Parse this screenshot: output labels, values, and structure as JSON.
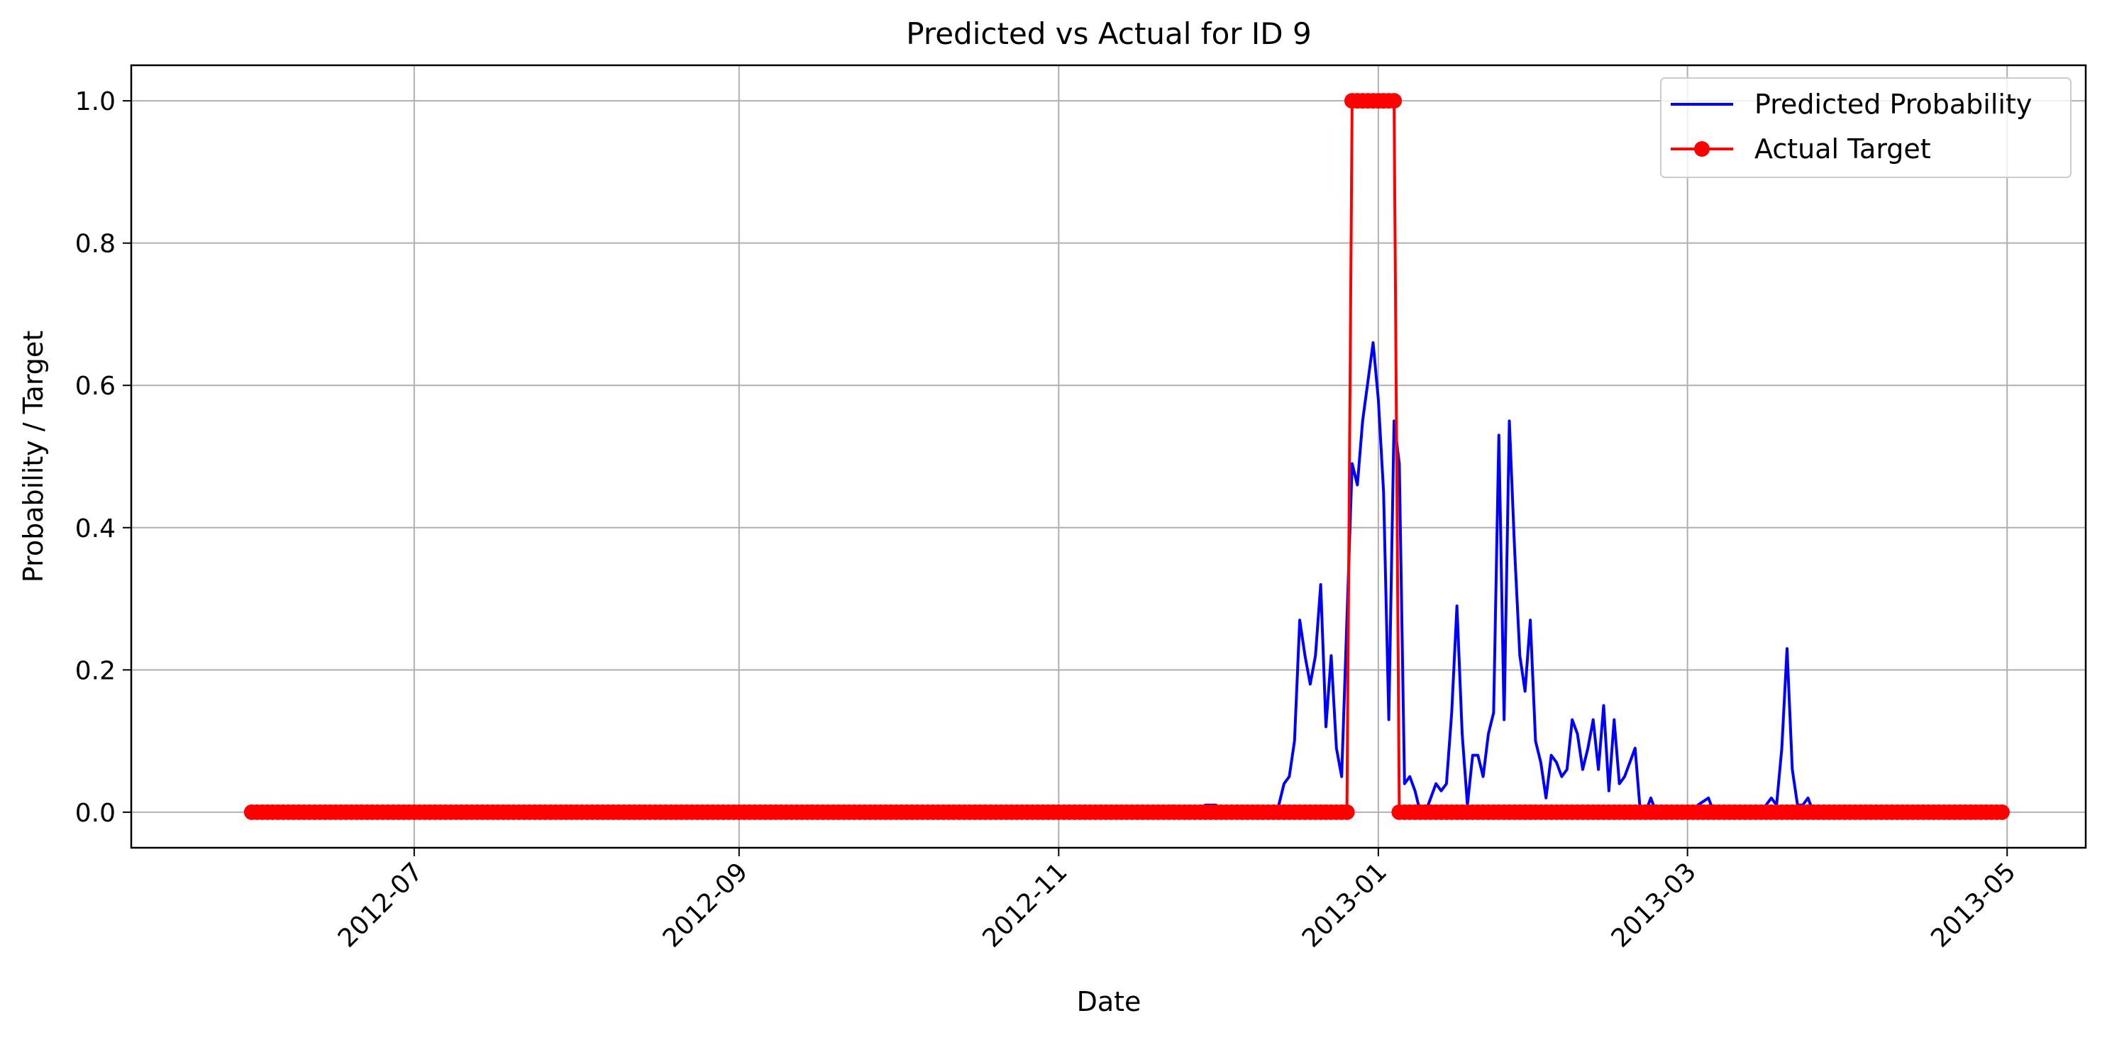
{
  "chart_data": {
    "type": "line",
    "title": "Predicted vs Actual for ID 9",
    "xlabel": "Date",
    "ylabel": "Probability / Target",
    "xlim": [
      "2012-05-08",
      "2013-05-16"
    ],
    "ylim": [
      -0.05,
      1.05
    ],
    "xticks": [
      "2012-07-01",
      "2012-09-01",
      "2012-11-01",
      "2013-01-01",
      "2013-03-01",
      "2013-05-01"
    ],
    "xtick_labels": [
      "2012-07",
      "2012-09",
      "2012-11",
      "2013-01",
      "2013-03",
      "2013-05"
    ],
    "yticks": [
      0.0,
      0.2,
      0.4,
      0.6,
      0.8,
      1.0
    ],
    "ytick_labels": [
      "0.0",
      "0.2",
      "0.4",
      "0.6",
      "0.8",
      "1.0"
    ],
    "grid": true,
    "legend_position": "top-right",
    "series": [
      {
        "name": "Predicted Probability",
        "color": "#0000ff",
        "marker": "none",
        "points": [
          [
            "2012-05-31",
            0.0
          ],
          [
            "2012-11-26",
            0.0
          ],
          [
            "2012-11-29",
            0.01
          ],
          [
            "2012-12-01",
            0.01
          ],
          [
            "2012-12-03",
            0.0
          ],
          [
            "2012-12-12",
            0.0
          ],
          [
            "2012-12-13",
            0.01
          ],
          [
            "2012-12-14",
            0.04
          ],
          [
            "2012-12-15",
            0.05
          ],
          [
            "2012-12-16",
            0.1
          ],
          [
            "2012-12-17",
            0.27
          ],
          [
            "2012-12-18",
            0.22
          ],
          [
            "2012-12-19",
            0.18
          ],
          [
            "2012-12-20",
            0.22
          ],
          [
            "2012-12-21",
            0.32
          ],
          [
            "2012-12-22",
            0.12
          ],
          [
            "2012-12-23",
            0.22
          ],
          [
            "2012-12-24",
            0.09
          ],
          [
            "2012-12-25",
            0.05
          ],
          [
            "2012-12-27",
            0.49
          ],
          [
            "2012-12-28",
            0.46
          ],
          [
            "2012-12-29",
            0.55
          ],
          [
            "2012-12-31",
            0.66
          ],
          [
            "2013-01-01",
            0.58
          ],
          [
            "2013-01-02",
            0.45
          ],
          [
            "2013-01-03",
            0.13
          ],
          [
            "2013-01-04",
            0.55
          ],
          [
            "2013-01-05",
            0.49
          ],
          [
            "2013-01-06",
            0.04
          ],
          [
            "2013-01-07",
            0.05
          ],
          [
            "2013-01-08",
            0.03
          ],
          [
            "2013-01-09",
            0.0
          ],
          [
            "2013-01-10",
            0.0
          ],
          [
            "2013-01-11",
            0.02
          ],
          [
            "2013-01-12",
            0.04
          ],
          [
            "2013-01-13",
            0.03
          ],
          [
            "2013-01-14",
            0.04
          ],
          [
            "2013-01-15",
            0.14
          ],
          [
            "2013-01-16",
            0.29
          ],
          [
            "2013-01-17",
            0.11
          ],
          [
            "2013-01-18",
            0.01
          ],
          [
            "2013-01-19",
            0.08
          ],
          [
            "2013-01-20",
            0.08
          ],
          [
            "2013-01-21",
            0.05
          ],
          [
            "2013-01-22",
            0.11
          ],
          [
            "2013-01-23",
            0.14
          ],
          [
            "2013-01-24",
            0.53
          ],
          [
            "2013-01-25",
            0.13
          ],
          [
            "2013-01-26",
            0.55
          ],
          [
            "2013-01-27",
            0.37
          ],
          [
            "2013-01-28",
            0.22
          ],
          [
            "2013-01-29",
            0.17
          ],
          [
            "2013-01-30",
            0.27
          ],
          [
            "2013-01-31",
            0.1
          ],
          [
            "2013-02-01",
            0.07
          ],
          [
            "2013-02-02",
            0.02
          ],
          [
            "2013-02-03",
            0.08
          ],
          [
            "2013-02-04",
            0.07
          ],
          [
            "2013-02-05",
            0.05
          ],
          [
            "2013-02-06",
            0.06
          ],
          [
            "2013-02-07",
            0.13
          ],
          [
            "2013-02-08",
            0.11
          ],
          [
            "2013-02-09",
            0.06
          ],
          [
            "2013-02-10",
            0.09
          ],
          [
            "2013-02-11",
            0.13
          ],
          [
            "2013-02-12",
            0.06
          ],
          [
            "2013-02-13",
            0.15
          ],
          [
            "2013-02-14",
            0.03
          ],
          [
            "2013-02-15",
            0.13
          ],
          [
            "2013-02-16",
            0.04
          ],
          [
            "2013-02-17",
            0.05
          ],
          [
            "2013-02-18",
            0.07
          ],
          [
            "2013-02-19",
            0.09
          ],
          [
            "2013-02-20",
            0.0
          ],
          [
            "2013-02-21",
            0.0
          ],
          [
            "2013-02-22",
            0.02
          ],
          [
            "2013-02-23",
            0.0
          ],
          [
            "2013-03-02",
            0.0
          ],
          [
            "2013-03-03",
            0.01
          ],
          [
            "2013-03-05",
            0.02
          ],
          [
            "2013-03-06",
            0.0
          ],
          [
            "2013-03-15",
            0.0
          ],
          [
            "2013-03-16",
            0.01
          ],
          [
            "2013-03-17",
            0.02
          ],
          [
            "2013-03-18",
            0.01
          ],
          [
            "2013-03-19",
            0.09
          ],
          [
            "2013-03-20",
            0.23
          ],
          [
            "2013-03-21",
            0.06
          ],
          [
            "2013-03-22",
            0.01
          ],
          [
            "2013-03-23",
            0.01
          ],
          [
            "2013-03-24",
            0.02
          ],
          [
            "2013-03-25",
            0.0
          ],
          [
            "2013-04-30",
            0.0
          ]
        ]
      },
      {
        "name": "Actual Target",
        "color": "#ff0000",
        "marker": "circle",
        "ranges": [
          {
            "start": "2012-05-31",
            "end": "2012-12-26",
            "value": 0
          },
          {
            "start": "2012-12-27",
            "end": "2013-01-04",
            "value": 1
          },
          {
            "start": "2013-01-05",
            "end": "2013-04-30",
            "value": 0
          }
        ]
      }
    ]
  }
}
